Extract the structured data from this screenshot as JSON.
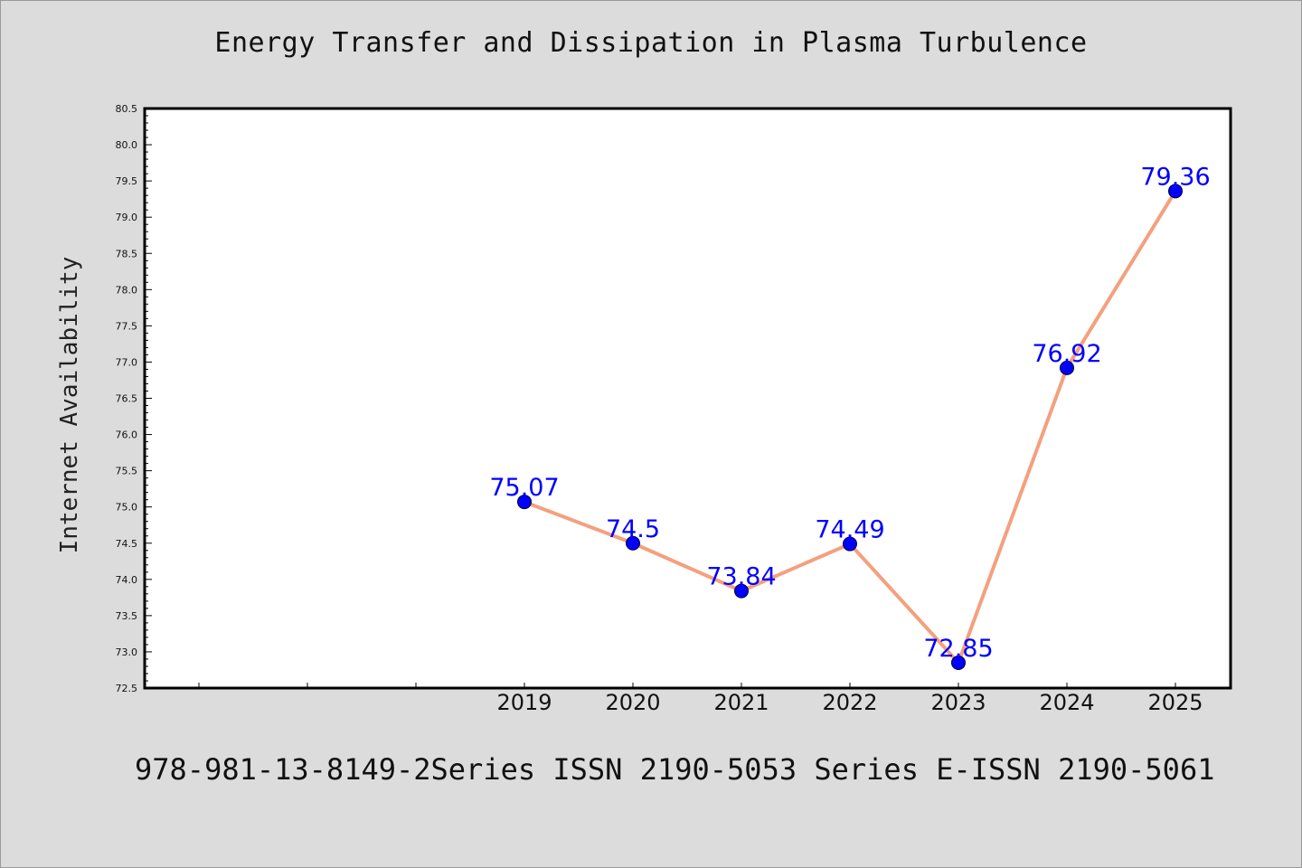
{
  "chart_data": {
    "type": "line",
    "title": "Energy Transfer and Dissipation in Plasma Turbulence",
    "xlabel": "",
    "ylabel": "Internet Availability",
    "categories": [
      "",
      "",
      "",
      "2019",
      "2020",
      "2021",
      "2022",
      "2023",
      "2024",
      "2025"
    ],
    "x": [
      "2019",
      "2020",
      "2021",
      "2022",
      "2023",
      "2024",
      "2025"
    ],
    "series": [
      {
        "values": [
          75.07,
          74.5,
          73.84,
          74.49,
          72.85,
          76.92,
          79.36
        ],
        "labels": [
          "75.07",
          "74.5",
          "73.84",
          "74.49",
          "72.85",
          "76.92",
          "79.36"
        ]
      }
    ],
    "ylim": [
      72.5,
      80.5
    ],
    "yticks": [
      "72.5",
      "73.0",
      "73.5",
      "74.0",
      "74.5",
      "75.0",
      "75.5",
      "76.0",
      "76.5",
      "77.0",
      "77.5",
      "78.0",
      "78.5",
      "79.0",
      "79.5",
      "80.0",
      "80.5"
    ],
    "line_color": "#f4a07e",
    "marker_color": "#0000ff",
    "label_color": "#0000ff",
    "grid": false,
    "legend": "none"
  },
  "footer": "978-981-13-8149-2Series ISSN 2190-5053 Series E-ISSN 2190-5061"
}
